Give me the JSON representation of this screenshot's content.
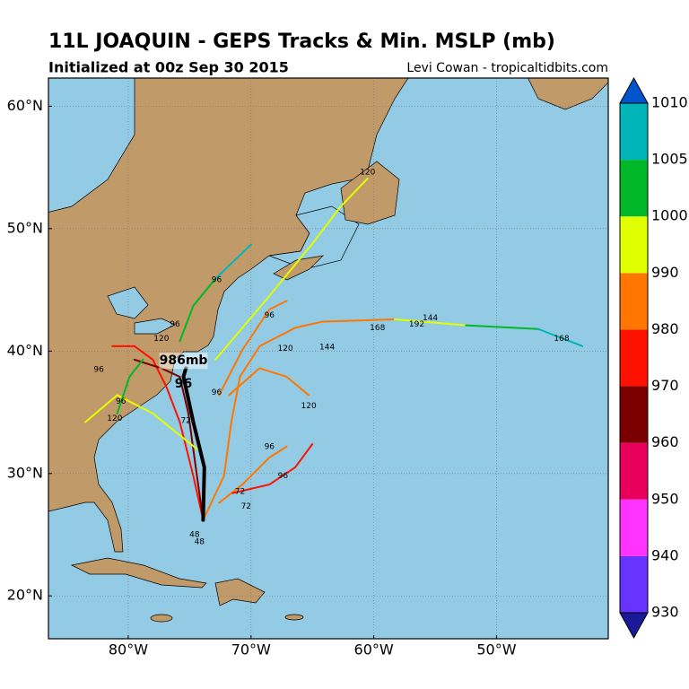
{
  "header": {
    "title": "11L JOAQUIN - GEPS Tracks & Min. MSLP (mb)",
    "subtitle": "Initialized at 00z Sep 30 2015",
    "credit": "Levi Cowan - tropicaltidbits.com"
  },
  "map": {
    "xlim": [
      -86.5,
      -40.9
    ],
    "ylim": [
      16.5,
      62.3
    ],
    "grid": true,
    "xticks": [
      {
        "value": -80,
        "label": "80°W"
      },
      {
        "value": -70,
        "label": "70°W"
      },
      {
        "value": -60,
        "label": "60°W"
      },
      {
        "value": -50,
        "label": "50°W"
      }
    ],
    "yticks": [
      {
        "value": 20,
        "label": "20°N"
      },
      {
        "value": 30,
        "label": "30°N"
      },
      {
        "value": 40,
        "label": "40°N"
      },
      {
        "value": 50,
        "label": "50°N"
      },
      {
        "value": 60,
        "label": "60°N"
      }
    ],
    "tracks": [
      {
        "color": "#ff7700",
        "lon": [
          -73.9,
          -72.2,
          -71.6,
          -70.9,
          -69.3,
          -66.4,
          -64.2,
          -58.3
        ],
        "lat": [
          26.2,
          29.8,
          34.2,
          37.9,
          40.4,
          41.9,
          42.4,
          42.6
        ]
      },
      {
        "color": "#e0ff00",
        "lon": [
          -58.3,
          -52.5
        ],
        "lat": [
          42.6,
          42.1
        ]
      },
      {
        "color": "#00b82a",
        "lon": [
          -52.5,
          -46.6
        ],
        "lat": [
          42.1,
          41.8
        ]
      },
      {
        "color": "#00b5b8",
        "lon": [
          -46.6,
          -43.0
        ],
        "lat": [
          41.8,
          40.4
        ]
      },
      {
        "color": "#e0ff00",
        "lon": [
          -72.9,
          -68.5,
          -64.9,
          -62.7,
          -60.5
        ],
        "lat": [
          39.3,
          44.5,
          48.9,
          51.8,
          54.1
        ]
      },
      {
        "color": "#00b82a",
        "lon": [
          -75.8,
          -74.7,
          -72.9
        ],
        "lat": [
          40.8,
          43.7,
          45.9
        ]
      },
      {
        "color": "#00b5b8",
        "lon": [
          -72.9,
          -70.0
        ],
        "lat": [
          45.9,
          48.7
        ]
      },
      {
        "color": "#ff1100",
        "lon": [
          -73.9,
          -74.7,
          -75.8,
          -76.9,
          -78.0,
          -79.5,
          -81.3
        ],
        "lat": [
          26.2,
          29.8,
          34.2,
          37.1,
          39.3,
          40.4,
          40.4
        ]
      },
      {
        "color": "#7a0000",
        "lon": [
          -73.9,
          -74.5,
          -75.1,
          -75.8,
          -77.3,
          -79.5
        ],
        "lat": [
          26.2,
          30.5,
          34.9,
          37.9,
          38.6,
          39.3
        ]
      },
      {
        "color": "#e0ff00",
        "lon": [
          -74.4,
          -78.0,
          -80.9,
          -83.5
        ],
        "lat": [
          32.0,
          34.9,
          36.4,
          34.2
        ]
      },
      {
        "color": "#00b82a",
        "lon": [
          -78.8,
          -79.9,
          -80.9
        ],
        "lat": [
          39.3,
          37.9,
          34.9
        ]
      },
      {
        "color": "#ff7700",
        "lon": [
          -72.6,
          -70.7,
          -68.5,
          -67.1
        ],
        "lat": [
          27.6,
          29.1,
          31.3,
          32.2
        ]
      },
      {
        "color": "#ff1100",
        "lon": [
          -71.5,
          -68.5,
          -66.4,
          -65.0
        ],
        "lat": [
          28.4,
          29.1,
          30.5,
          32.4
        ]
      },
      {
        "color": "#ff7700",
        "lon": [
          -71.8,
          -69.3,
          -67.1,
          -65.3
        ],
        "lat": [
          36.4,
          38.6,
          37.9,
          36.4
        ]
      },
      {
        "color": "#ff7700",
        "lon": [
          -72.6,
          -70.7,
          -68.5,
          -67.1
        ],
        "lat": [
          36.4,
          40.1,
          43.4,
          44.1
        ]
      }
    ],
    "mean_track": {
      "color": "#000000",
      "lon": [
        -73.9,
        -73.8,
        -74.7,
        -75.5,
        -75.3
      ],
      "lat": [
        26.2,
        30.5,
        34.2,
        37.9,
        38.6
      ]
    },
    "track_labels": [
      {
        "text": "120",
        "lon": -60.5,
        "lat": 54.6
      },
      {
        "text": "96",
        "lon": -68.5,
        "lat": 42.9
      },
      {
        "text": "120",
        "lon": -67.2,
        "lat": 40.2
      },
      {
        "text": "144",
        "lon": -63.8,
        "lat": 40.3
      },
      {
        "text": "168",
        "lon": -59.7,
        "lat": 41.9
      },
      {
        "text": "192",
        "lon": -56.5,
        "lat": 42.2
      },
      {
        "text": "144",
        "lon": -55.4,
        "lat": 42.7
      },
      {
        "text": "168",
        "lon": -44.7,
        "lat": 41.0
      },
      {
        "text": "120",
        "lon": -65.3,
        "lat": 35.5
      },
      {
        "text": "96",
        "lon": -68.5,
        "lat": 32.2
      },
      {
        "text": "96",
        "lon": -67.4,
        "lat": 29.8
      },
      {
        "text": "72",
        "lon": -70.9,
        "lat": 28.5
      },
      {
        "text": "72",
        "lon": -70.4,
        "lat": 27.3
      },
      {
        "text": "48",
        "lon": -74.6,
        "lat": 25.0
      },
      {
        "text": "48",
        "lon": -74.2,
        "lat": 24.4
      },
      {
        "text": "96",
        "lon": -82.4,
        "lat": 38.5
      },
      {
        "text": "96",
        "lon": -80.6,
        "lat": 35.9
      },
      {
        "text": "120",
        "lon": -81.1,
        "lat": 34.5
      },
      {
        "text": "96",
        "lon": -72.8,
        "lat": 36.6
      },
      {
        "text": "72",
        "lon": -75.3,
        "lat": 34.3
      },
      {
        "text": "120",
        "lon": -77.3,
        "lat": 41.0
      },
      {
        "text": "96",
        "lon": -76.2,
        "lat": 42.2
      },
      {
        "text": "96",
        "lon": -72.8,
        "lat": 45.8
      }
    ],
    "annotation": {
      "pressure": "986mb",
      "hour": "96",
      "lon": -75.5,
      "lat": 39.2
    }
  },
  "colorbar": {
    "levels": [
      930,
      940,
      950,
      960,
      970,
      980,
      990,
      1000,
      1005,
      1010
    ],
    "colors": [
      "#6633ff",
      "#ff33ff",
      "#e8005a",
      "#7a0000",
      "#ff1100",
      "#ff7700",
      "#e0ff00",
      "#00b82a",
      "#00b5b8"
    ],
    "under_color": "#1a1a99",
    "over_color": "#0055cc"
  }
}
